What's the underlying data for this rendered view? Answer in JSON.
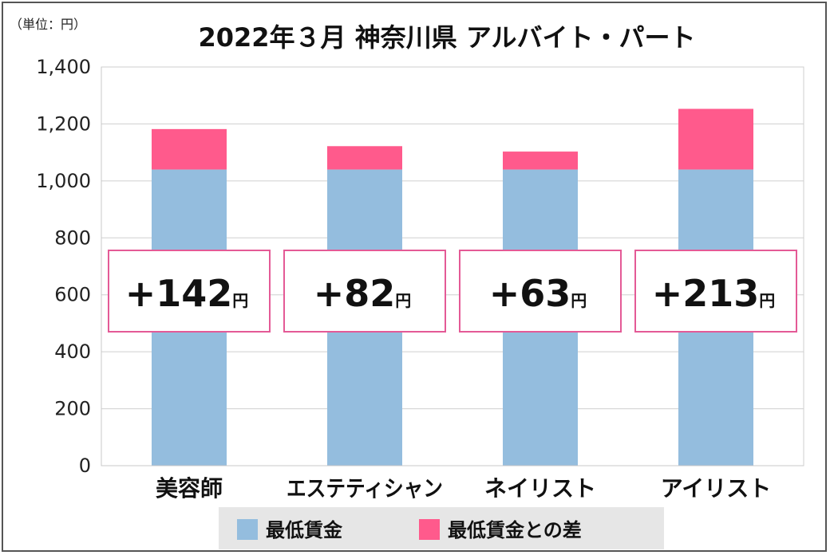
{
  "chart_data": {
    "type": "bar",
    "stacked": true,
    "title": "2022年３月 神奈川県 アルバイト・パート",
    "unit_label": "（単位：円）",
    "categories": [
      "美容師",
      "エステティシャン",
      "ネイリスト",
      "アイリスト"
    ],
    "series": [
      {
        "name": "最低賃金",
        "values": [
          1040,
          1040,
          1040,
          1040
        ],
        "color": "#94BDDE"
      },
      {
        "name": "最低賃金との差",
        "values": [
          142,
          82,
          63,
          213
        ],
        "color": "#FF5A8C"
      }
    ],
    "annotations": [
      {
        "sign": "+",
        "value": "142",
        "unit": "円"
      },
      {
        "sign": "+",
        "value": "82",
        "unit": "円"
      },
      {
        "sign": "+",
        "value": "63",
        "unit": "円"
      },
      {
        "sign": "+",
        "value": "213",
        "unit": "円"
      }
    ],
    "annotation_border_color": "#E45A96",
    "ylim": [
      0,
      1400
    ],
    "yticks": [
      "0",
      "200",
      "400",
      "600",
      "800",
      "1,000",
      "1,200",
      "1,400"
    ],
    "ytick_values": [
      0,
      200,
      400,
      600,
      800,
      1000,
      1200,
      1400
    ],
    "grid": true,
    "legend_position": "bottom-center",
    "legend_background": "#E6E6E6",
    "axis_color": "#C8C8C8"
  }
}
